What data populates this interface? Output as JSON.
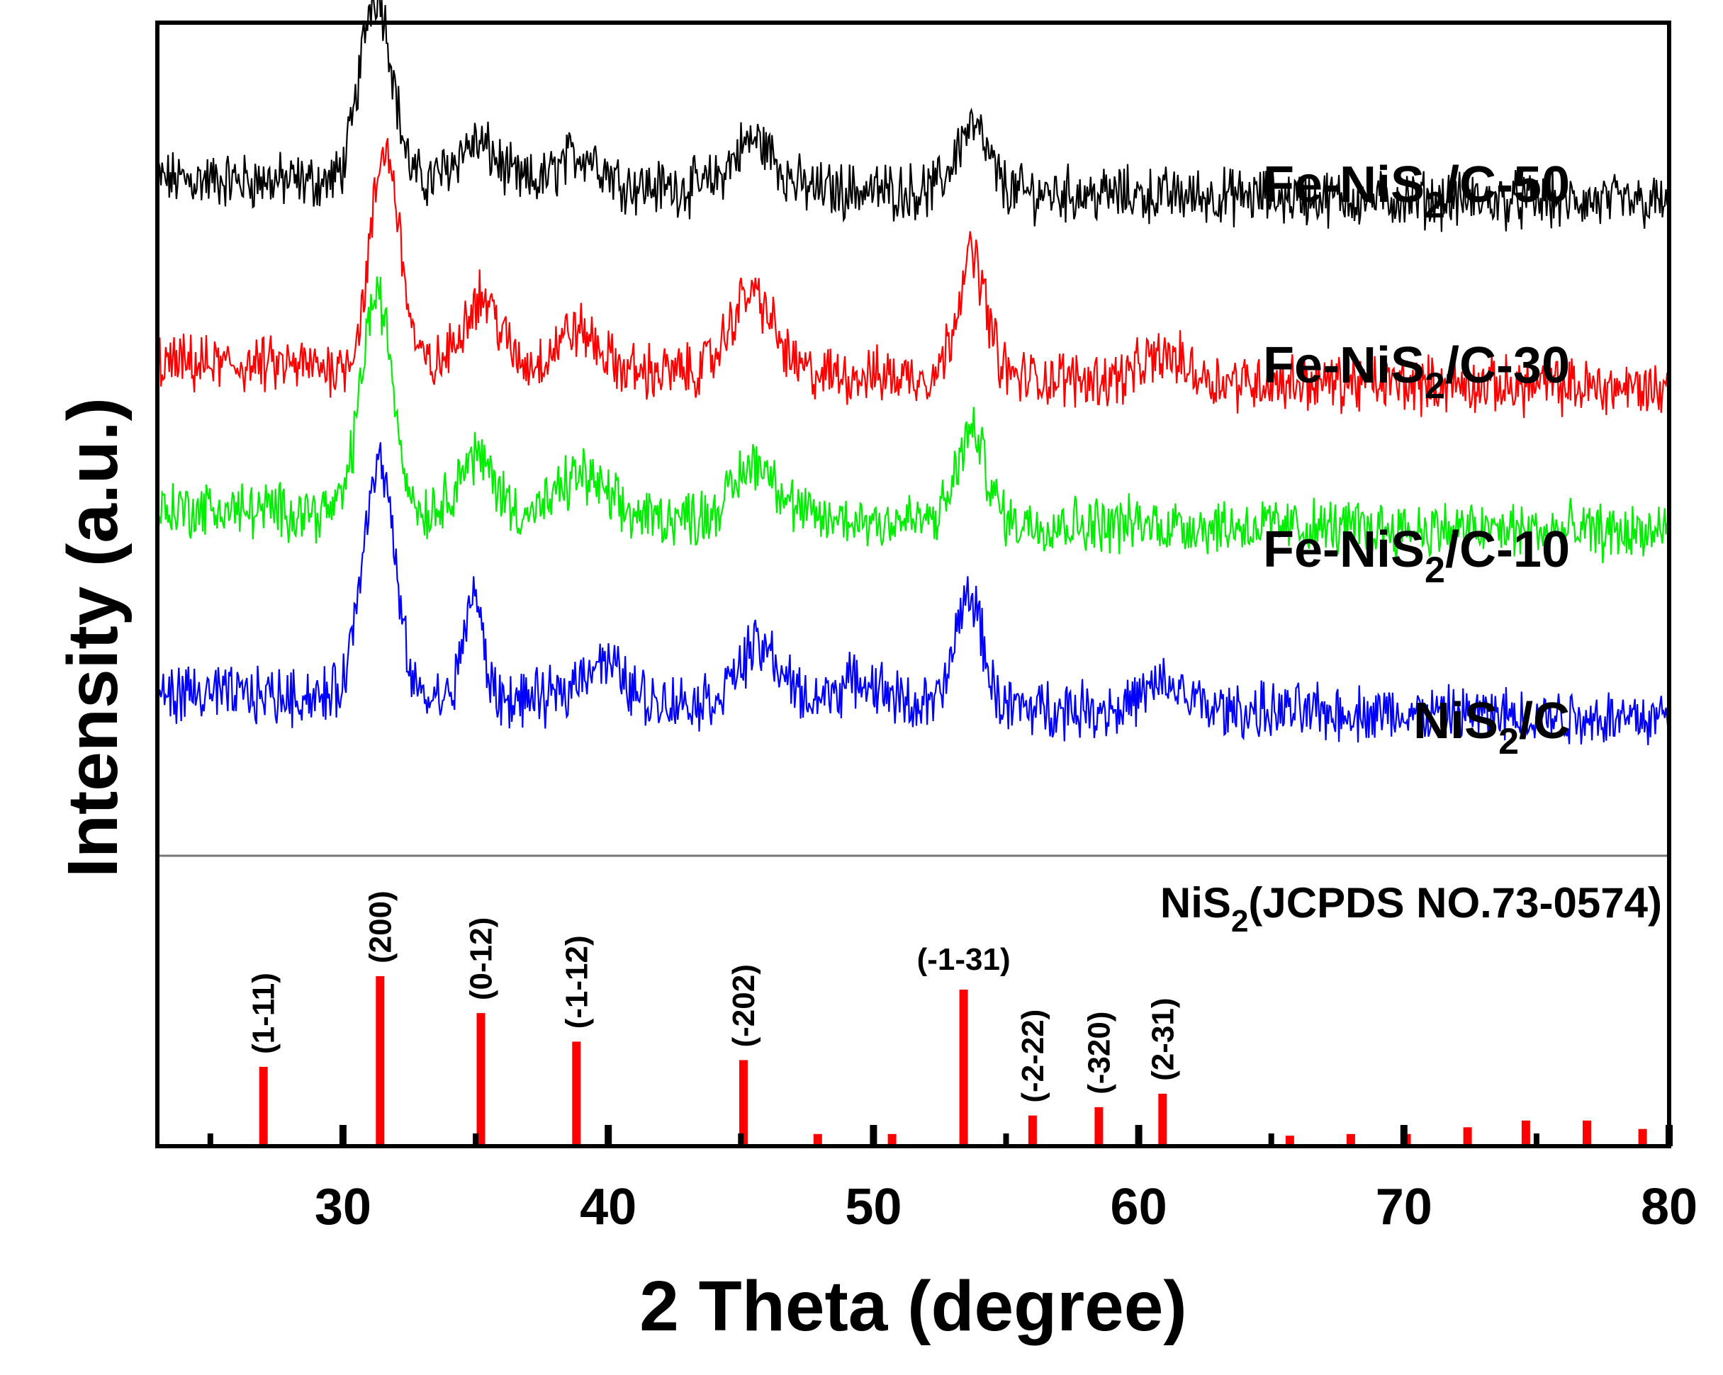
{
  "chart_data": {
    "type": "line",
    "title": "",
    "xlabel": "2 Theta (degree)",
    "ylabel": "Intensity (a.u.)",
    "xlim": [
      23,
      80
    ],
    "xticks": [
      30,
      40,
      50,
      60,
      70,
      80
    ],
    "x_tick_labels": [
      "30",
      "40",
      "50",
      "60",
      "70",
      "80"
    ],
    "series": [
      {
        "name": "Fe-NiS2/C-50",
        "label_main": "Fe-NiS",
        "label_sub": "2",
        "label_tail": "/C-50",
        "color": "#000000",
        "baseline": 0.8,
        "noise": 0.028,
        "peaks": [
          [
            31.0,
            0.16,
            0.5
          ],
          [
            31.6,
            0.12,
            0.5
          ],
          [
            35.0,
            0.05,
            0.8
          ],
          [
            39.0,
            0.04,
            0.8
          ],
          [
            45.5,
            0.06,
            0.8
          ],
          [
            53.7,
            0.08,
            0.6
          ]
        ]
      },
      {
        "name": "Fe-NiS2/C-30",
        "label_main": "Fe-NiS",
        "label_sub": "2",
        "label_tail": "/C-30",
        "color": "#ff0000",
        "baseline": 0.57,
        "noise": 0.028,
        "peaks": [
          [
            31.6,
            0.27,
            0.55
          ],
          [
            35.2,
            0.09,
            0.7
          ],
          [
            38.8,
            0.05,
            0.8
          ],
          [
            45.4,
            0.1,
            0.8
          ],
          [
            53.7,
            0.15,
            0.55
          ],
          [
            61.0,
            0.03,
            0.8
          ]
        ]
      },
      {
        "name": "Fe-NiS2/C-10",
        "label_main": "Fe-NiS",
        "label_sub": "2",
        "label_tail": "/C-10",
        "color": "#00ee00",
        "baseline": 0.39,
        "noise": 0.028,
        "peaks": [
          [
            31.0,
            0.17,
            0.5
          ],
          [
            31.6,
            0.15,
            0.5
          ],
          [
            35.0,
            0.07,
            0.7
          ],
          [
            39.0,
            0.05,
            0.8
          ],
          [
            45.6,
            0.07,
            0.8
          ],
          [
            53.7,
            0.11,
            0.55
          ]
        ]
      },
      {
        "name": "NiS2/C",
        "label_main": "NiS",
        "label_sub": "2",
        "label_tail": "/C",
        "color": "#0000ff",
        "baseline": 0.16,
        "noise": 0.028,
        "peaks": [
          [
            31.0,
            0.16,
            0.5
          ],
          [
            31.6,
            0.19,
            0.5
          ],
          [
            34.9,
            0.13,
            0.35
          ],
          [
            39.7,
            0.05,
            0.8
          ],
          [
            45.7,
            0.07,
            0.8
          ],
          [
            49.5,
            0.03,
            0.9
          ],
          [
            53.6,
            0.14,
            0.5
          ],
          [
            61.0,
            0.03,
            0.8
          ]
        ]
      }
    ],
    "reference": {
      "label_main": "NiS",
      "label_sub": "2",
      "label_tail": "(JCPDS NO.73-0574)",
      "color": "#ff0000",
      "peaks": [
        {
          "x": 27.0,
          "rel": 0.46,
          "hkl": "(1-11)"
        },
        {
          "x": 31.4,
          "rel": 1.0,
          "hkl": "(200)"
        },
        {
          "x": 35.2,
          "rel": 0.78,
          "hkl": "(0-12)"
        },
        {
          "x": 38.8,
          "rel": 0.61,
          "hkl": "(-1-12)"
        },
        {
          "x": 45.1,
          "rel": 0.5,
          "hkl": "(-202)"
        },
        {
          "x": 47.9,
          "rel": 0.06,
          "hkl": ""
        },
        {
          "x": 50.7,
          "rel": 0.06,
          "hkl": ""
        },
        {
          "x": 53.4,
          "rel": 0.92,
          "hkl": "(-1-31)"
        },
        {
          "x": 56.0,
          "rel": 0.17,
          "hkl": "(-2-22)"
        },
        {
          "x": 58.5,
          "rel": 0.22,
          "hkl": "(-320)"
        },
        {
          "x": 60.9,
          "rel": 0.3,
          "hkl": "(2-31)"
        },
        {
          "x": 65.7,
          "rel": 0.05,
          "hkl": ""
        },
        {
          "x": 68.0,
          "rel": 0.06,
          "hkl": ""
        },
        {
          "x": 70.1,
          "rel": 0.06,
          "hkl": ""
        },
        {
          "x": 72.4,
          "rel": 0.1,
          "hkl": ""
        },
        {
          "x": 74.6,
          "rel": 0.14,
          "hkl": ""
        },
        {
          "x": 76.9,
          "rel": 0.14,
          "hkl": ""
        },
        {
          "x": 79.0,
          "rel": 0.09,
          "hkl": ""
        }
      ]
    }
  }
}
